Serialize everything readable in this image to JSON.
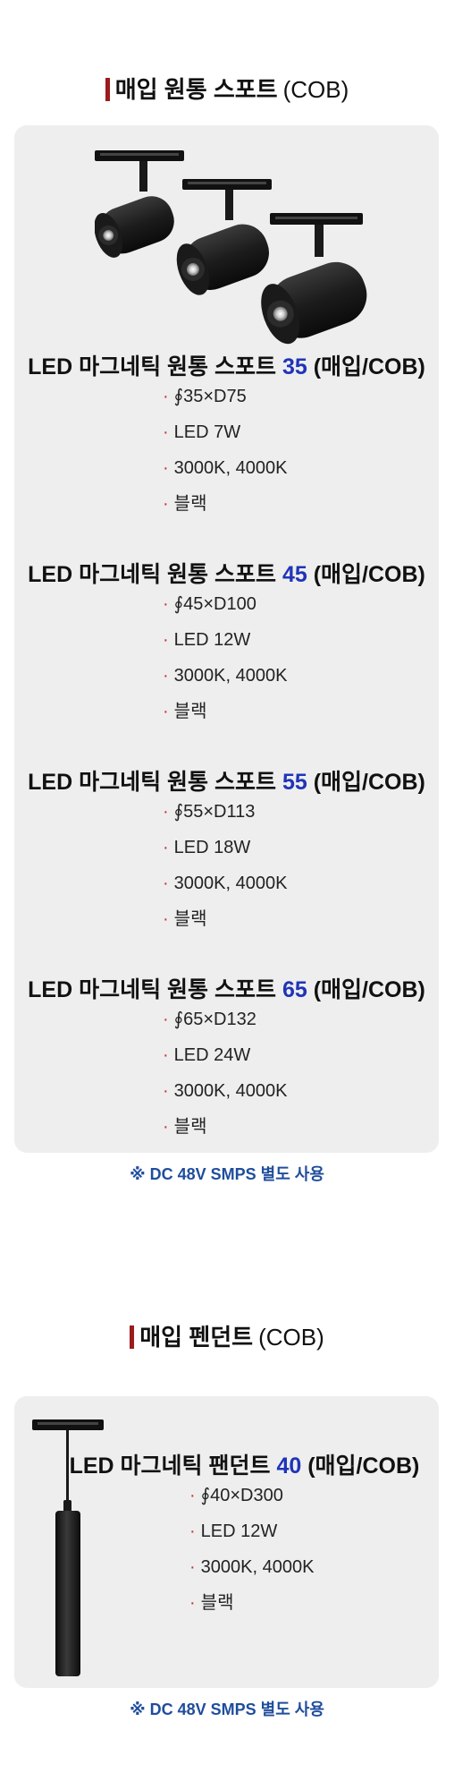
{
  "section1": {
    "title_main": "매입 원통 스포트",
    "title_sub": "(COB)",
    "products": [
      {
        "name_prefix": "LED 마그네틱 원통 스포트",
        "size": "35",
        "suffix": "(매입/COB)",
        "specs": [
          "∮35×D75",
          "LED 7W",
          "3000K, 4000K",
          "블랙"
        ]
      },
      {
        "name_prefix": "LED 마그네틱 원통 스포트",
        "size": "45",
        "suffix": "(매입/COB)",
        "specs": [
          "∮45×D100",
          "LED 12W",
          "3000K, 4000K",
          "블랙"
        ]
      },
      {
        "name_prefix": "LED 마그네틱 원통 스포트",
        "size": "55",
        "suffix": "(매입/COB)",
        "specs": [
          "∮55×D113",
          "LED 18W",
          "3000K, 4000K",
          "블랙"
        ]
      },
      {
        "name_prefix": "LED 마그네틱 원통 스포트",
        "size": "65",
        "suffix": "(매입/COB)",
        "specs": [
          "∮65×D132",
          "LED 24W",
          "3000K, 4000K",
          "블랙"
        ]
      }
    ],
    "note": "※ DC 48V  SMPS 별도 사용"
  },
  "section2": {
    "title_main": "매입 펜던트",
    "title_sub": "(COB)",
    "product": {
      "name_prefix": "LED 마그네틱 팬던트",
      "size": "40",
      "suffix": "(매입/COB)",
      "specs": [
        "∮40×D300",
        "LED 12W",
        "3000K, 4000K",
        "블랙"
      ]
    },
    "note": "※ DC 48V  SMPS 별도 사용"
  },
  "colors": {
    "accent_bar": "#9b1c1c",
    "size_number": "#2034b8",
    "bullet": "#c8342b",
    "note": "#1f4d9c",
    "card_bg": "#eeeeee"
  },
  "icons": {
    "spot_light_image": "three-black-cylinder-track-spotlights",
    "pendant_image": "black-magnetic-pendant-light"
  }
}
